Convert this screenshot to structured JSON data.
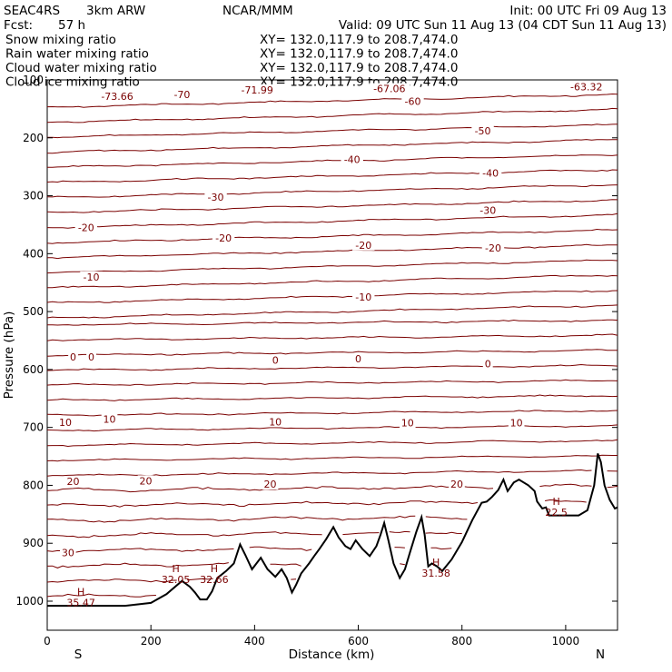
{
  "header": {
    "project": "SEAC4RS",
    "model": "3km ARW",
    "org": "NCAR/MMM",
    "init": "Init: 00 UTC Fri 09 Aug 13",
    "fcst_label": "Fcst:",
    "fcst_value": "57 h",
    "valid": "Valid: 09 UTC Sun 11 Aug 13 (04 CDT Sun 11 Aug 13)"
  },
  "legend": [
    {
      "label": "Snow mixing ratio",
      "xy": "XY= 132.0,117.9 to 208.7,474.0",
      "color": "#000000"
    },
    {
      "label": "Rain water mixing ratio",
      "xy": "XY= 132.0,117.9 to 208.7,474.0",
      "color": "#e60000"
    },
    {
      "label": "Cloud water mixing ratio",
      "xy": "XY= 132.0,117.9 to 208.7,474.0",
      "color": "#1a1acc"
    },
    {
      "label": "Cloud ice mixing ratio",
      "xy": "XY= 132.0,117.9 to 208.7,474.0",
      "color": "#000000"
    }
  ],
  "chart_data": {
    "type": "line",
    "xlabel": "Distance (km)",
    "ylabel": "Pressure (hPa)",
    "xlim": [
      0,
      1100
    ],
    "ylim": [
      1050,
      100
    ],
    "x_ticks": [
      0,
      200,
      400,
      600,
      800,
      1000
    ],
    "y_ticks": [
      1000,
      900,
      800,
      700,
      600,
      500,
      400,
      300,
      200,
      100
    ],
    "end_labels": {
      "left": "S",
      "right": "N"
    },
    "isotherm_color": "#7a0000",
    "freezing_level_hpa": 580,
    "isotherm_labels": [
      {
        "text": "-73.66",
        "x": 135,
        "p": 128
      },
      {
        "text": "-70",
        "x": 260,
        "p": 125
      },
      {
        "text": "-71.99",
        "x": 405,
        "p": 117
      },
      {
        "text": "-67.06",
        "x": 660,
        "p": 115
      },
      {
        "text": "-63.32",
        "x": 1040,
        "p": 112
      },
      {
        "text": "-60",
        "x": 705,
        "p": 137
      },
      {
        "text": "-50",
        "x": 840,
        "p": 188
      },
      {
        "text": "-40",
        "x": 588,
        "p": 237
      },
      {
        "text": "-40",
        "x": 855,
        "p": 261
      },
      {
        "text": "-30",
        "x": 325,
        "p": 302
      },
      {
        "text": "-30",
        "x": 850,
        "p": 325
      },
      {
        "text": "-20",
        "x": 75,
        "p": 355
      },
      {
        "text": "-20",
        "x": 340,
        "p": 373
      },
      {
        "text": "-20",
        "x": 610,
        "p": 385
      },
      {
        "text": "-20",
        "x": 860,
        "p": 390
      },
      {
        "text": "-10",
        "x": 85,
        "p": 440
      },
      {
        "text": "-10",
        "x": 610,
        "p": 475
      },
      {
        "text": "0",
        "x": 50,
        "p": 578
      },
      {
        "text": "0",
        "x": 85,
        "p": 578
      },
      {
        "text": "0",
        "x": 440,
        "p": 584
      },
      {
        "text": "0",
        "x": 600,
        "p": 581
      },
      {
        "text": "0",
        "x": 850,
        "p": 590
      },
      {
        "text": "10",
        "x": 35,
        "p": 691
      },
      {
        "text": "10",
        "x": 120,
        "p": 686
      },
      {
        "text": "10",
        "x": 440,
        "p": 690
      },
      {
        "text": "10",
        "x": 695,
        "p": 692
      },
      {
        "text": "10",
        "x": 905,
        "p": 692
      },
      {
        "text": "20",
        "x": 50,
        "p": 793
      },
      {
        "text": "20",
        "x": 190,
        "p": 792
      },
      {
        "text": "20",
        "x": 430,
        "p": 798
      },
      {
        "text": "20",
        "x": 790,
        "p": 798
      },
      {
        "text": "30",
        "x": 40,
        "p": 916
      }
    ],
    "highs": [
      {
        "label": "H",
        "value": "35.47",
        "x": 65,
        "p": 990
      },
      {
        "label": "H",
        "value": "32.05",
        "x": 248,
        "p": 950
      },
      {
        "label": "H",
        "value": "32.66",
        "x": 322,
        "p": 950
      },
      {
        "label": "H",
        "value": "31.58",
        "x": 750,
        "p": 939
      },
      {
        "label": "H",
        "value": "22.5",
        "x": 982,
        "p": 834
      }
    ],
    "terrain": [
      [
        0,
        1008
      ],
      [
        150,
        1008
      ],
      [
        200,
        1003
      ],
      [
        230,
        988
      ],
      [
        260,
        965
      ],
      [
        275,
        975
      ],
      [
        285,
        985
      ],
      [
        295,
        997
      ],
      [
        308,
        997
      ],
      [
        318,
        983
      ],
      [
        328,
        960
      ],
      [
        345,
        948
      ],
      [
        360,
        935
      ],
      [
        372,
        902
      ],
      [
        382,
        920
      ],
      [
        395,
        945
      ],
      [
        412,
        925
      ],
      [
        425,
        945
      ],
      [
        440,
        958
      ],
      [
        452,
        945
      ],
      [
        462,
        960
      ],
      [
        472,
        985
      ],
      [
        480,
        972
      ],
      [
        490,
        952
      ],
      [
        505,
        935
      ],
      [
        515,
        922
      ],
      [
        525,
        910
      ],
      [
        538,
        893
      ],
      [
        552,
        872
      ],
      [
        562,
        890
      ],
      [
        575,
        905
      ],
      [
        585,
        910
      ],
      [
        595,
        895
      ],
      [
        608,
        910
      ],
      [
        622,
        922
      ],
      [
        635,
        905
      ],
      [
        643,
        885
      ],
      [
        650,
        865
      ],
      [
        658,
        895
      ],
      [
        668,
        935
      ],
      [
        680,
        960
      ],
      [
        690,
        945
      ],
      [
        700,
        915
      ],
      [
        712,
        880
      ],
      [
        722,
        855
      ],
      [
        728,
        885
      ],
      [
        735,
        940
      ],
      [
        742,
        935
      ],
      [
        752,
        940
      ],
      [
        762,
        948
      ],
      [
        780,
        928
      ],
      [
        800,
        898
      ],
      [
        820,
        860
      ],
      [
        838,
        830
      ],
      [
        848,
        828
      ],
      [
        858,
        820
      ],
      [
        870,
        808
      ],
      [
        880,
        790
      ],
      [
        888,
        810
      ],
      [
        900,
        795
      ],
      [
        910,
        790
      ],
      [
        928,
        800
      ],
      [
        940,
        810
      ],
      [
        945,
        828
      ],
      [
        955,
        840
      ],
      [
        962,
        838
      ],
      [
        968,
        852
      ],
      [
        1000,
        852
      ],
      [
        1025,
        852
      ],
      [
        1042,
        843
      ],
      [
        1055,
        800
      ],
      [
        1062,
        745
      ],
      [
        1068,
        760
      ],
      [
        1075,
        800
      ],
      [
        1085,
        825
      ],
      [
        1095,
        840
      ],
      [
        1100,
        838
      ]
    ]
  }
}
